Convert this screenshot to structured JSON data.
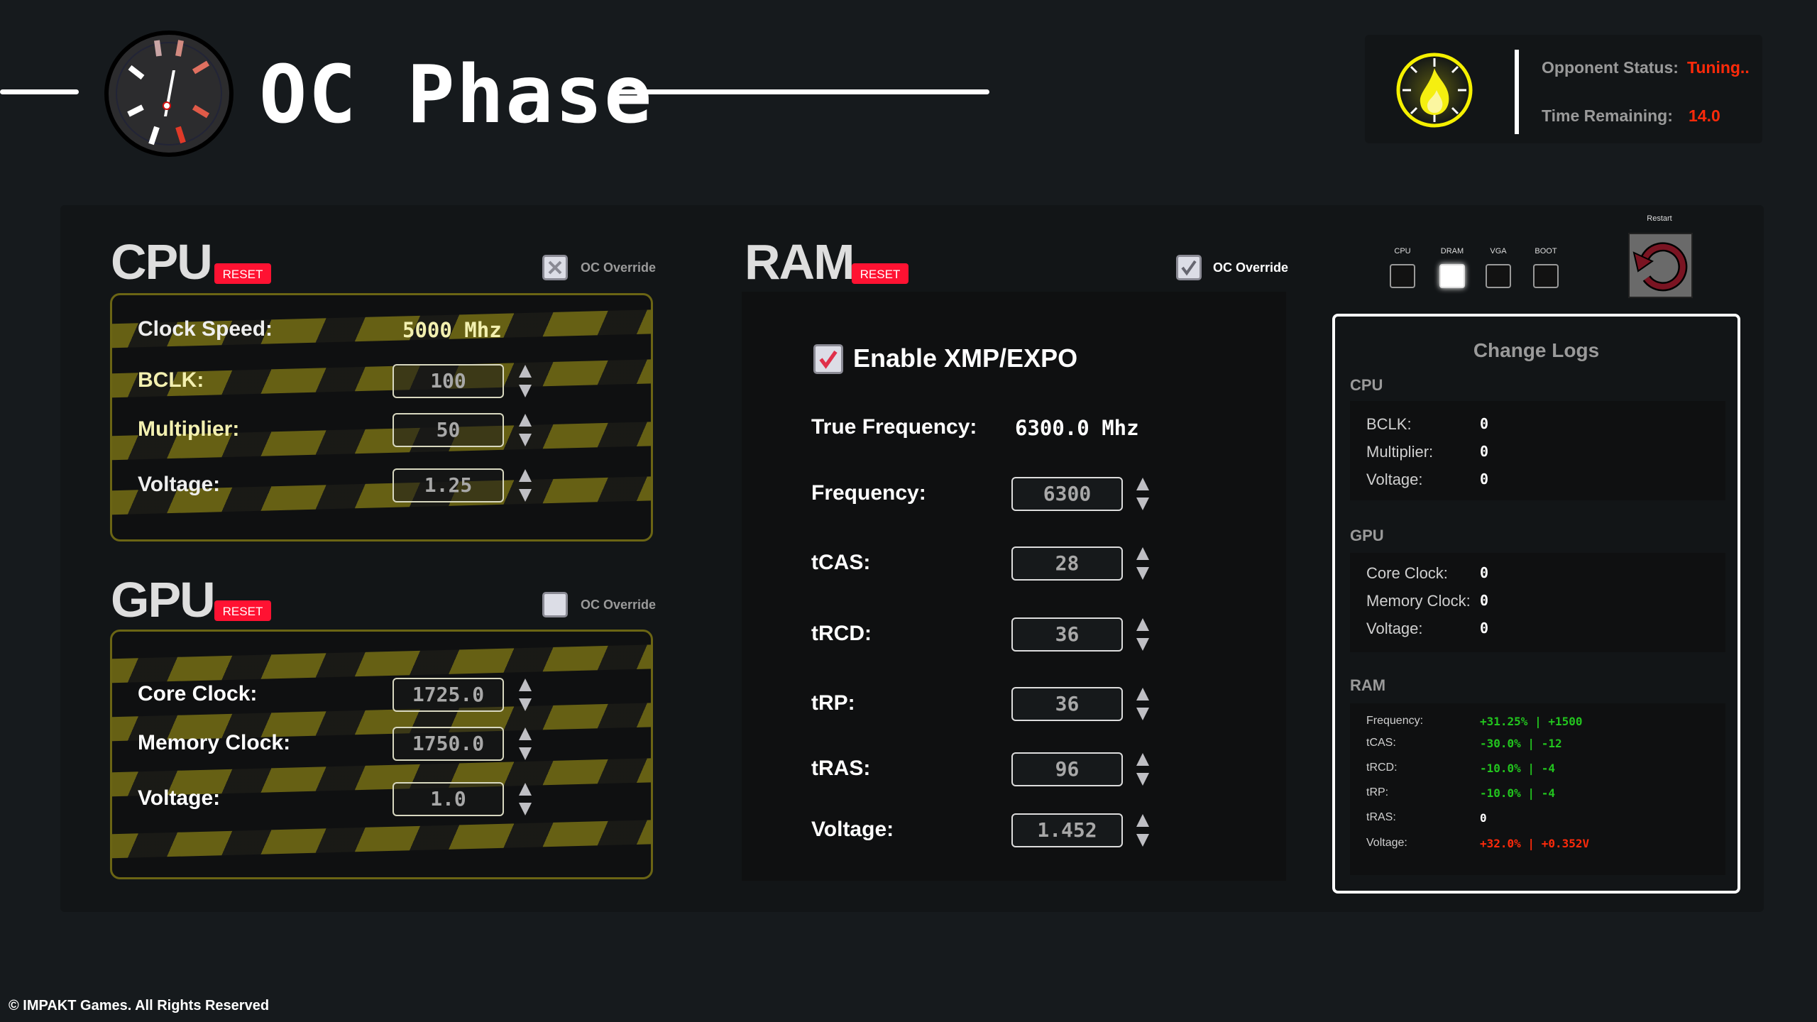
{
  "header": {
    "title": "OC Phase"
  },
  "status": {
    "opponent_label": "Opponent Status:",
    "opponent_value": "Tuning..",
    "time_label": "Time Remaining:",
    "time_value": "14.0"
  },
  "cpu": {
    "title": "CPU",
    "reset": "RESET",
    "override_label": "OC Override",
    "override_state": "x",
    "clock_label": "Clock Speed:",
    "clock_value": "5000 Mhz",
    "fields": [
      {
        "label": "BCLK:",
        "value": "100"
      },
      {
        "label": "Multiplier:",
        "value": "50"
      },
      {
        "label": "Voltage:",
        "value": "1.25"
      }
    ]
  },
  "gpu": {
    "title": "GPU",
    "reset": "RESET",
    "override_label": "OC Override",
    "override_state": "unchecked",
    "fields": [
      {
        "label": "Core Clock:",
        "value": "1725.0"
      },
      {
        "label": "Memory Clock:",
        "value": "1750.0"
      },
      {
        "label": "Voltage:",
        "value": "1.0"
      }
    ]
  },
  "ram": {
    "title": "RAM",
    "reset": "RESET",
    "override_label": "OC Override",
    "override_state": "checked",
    "xmp_label": "Enable XMP/EXPO",
    "xmp_checked": true,
    "true_freq_label": "True Frequency:",
    "true_freq_value": "6300.0 Mhz",
    "fields": [
      {
        "label": "Frequency:",
        "value": "6300"
      },
      {
        "label": "tCAS:",
        "value": "28"
      },
      {
        "label": "tRCD:",
        "value": "36"
      },
      {
        "label": "tRP:",
        "value": "36"
      },
      {
        "label": "tRAS:",
        "value": "96"
      },
      {
        "label": "Voltage:",
        "value": "1.452"
      }
    ]
  },
  "boot": {
    "items": [
      {
        "label": "CPU",
        "lit": false
      },
      {
        "label": "DRAM",
        "lit": true
      },
      {
        "label": "VGA",
        "lit": false
      },
      {
        "label": "BOOT",
        "lit": false
      }
    ],
    "restart_label": "Restart"
  },
  "logs": {
    "title": "Change Logs",
    "cpu": {
      "title": "CPU",
      "rows": [
        {
          "label": "BCLK:",
          "value": "0"
        },
        {
          "label": "Multiplier:",
          "value": "0"
        },
        {
          "label": "Voltage:",
          "value": "0"
        }
      ]
    },
    "gpu": {
      "title": "GPU",
      "rows": [
        {
          "label": "Core Clock:",
          "value": "0"
        },
        {
          "label": "Memory Clock:",
          "value": "0"
        },
        {
          "label": "Voltage:",
          "value": "0"
        }
      ]
    },
    "ram": {
      "title": "RAM",
      "rows": [
        {
          "label": "Frequency:",
          "value": "+31.25% | +1500",
          "color": "#22c41e"
        },
        {
          "label": "tCAS:",
          "value": "-30.0% | -12",
          "color": "#22c41e"
        },
        {
          "label": "tRCD:",
          "value": "-10.0% | -4",
          "color": "#22c41e"
        },
        {
          "label": "tRP:",
          "value": "-10.0% | -4",
          "color": "#22c41e"
        },
        {
          "label": "tRAS:",
          "value": "0",
          "color": "#ffffff"
        },
        {
          "label": "Voltage:",
          "value": "+32.0% | +0.352V",
          "color": "#ff2a0a"
        }
      ]
    }
  },
  "footer": {
    "copyright": "© IMPAKT Games. All Rights Reserved"
  },
  "colors": {
    "accent_red": "#ff1232",
    "hazard": "#6b6514",
    "good": "#22c41e",
    "bad": "#ff2a0a",
    "timer_yellow": "#f5f000"
  }
}
